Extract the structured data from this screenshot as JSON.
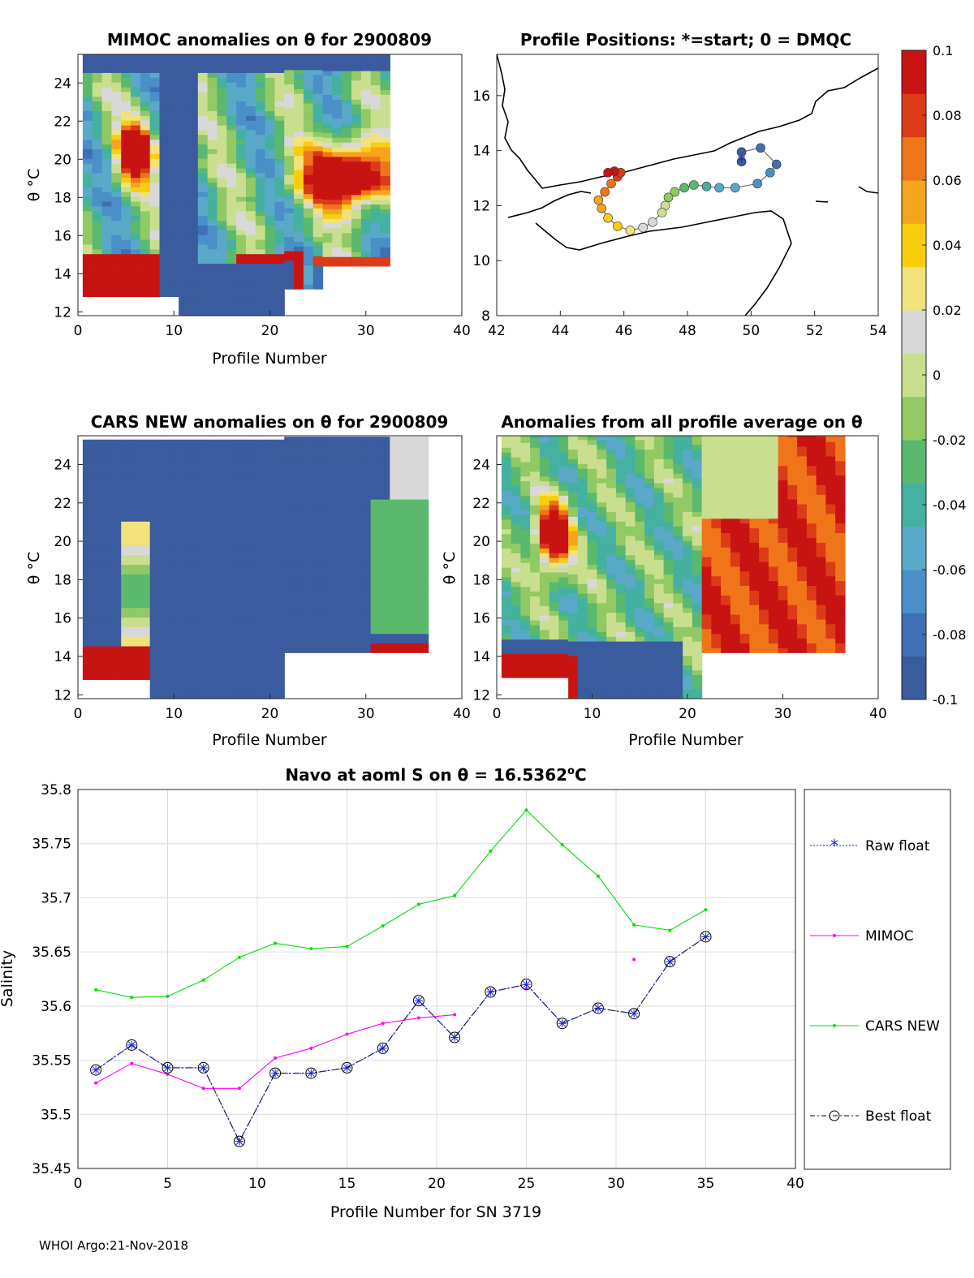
{
  "footer": "WHOI Argo:21-Nov-2018",
  "colors": {
    "cmap": [
      "#3b5b9f",
      "#3f6fb4",
      "#4a8fc8",
      "#5aa9c9",
      "#45b1a0",
      "#5bb96e",
      "#91c964",
      "#c9df8f",
      "#d8d8d8",
      "#f1e27a",
      "#f7cf0e",
      "#f7a41d",
      "#f0751a",
      "#dc3b17",
      "#c81313"
    ],
    "green": "#00e000",
    "magenta": "#ff00ff",
    "blue": "#1b24d4",
    "dash": "#000000"
  },
  "panels": {
    "mimoc": {
      "title": "MIMOC anomalies on θ  for 2900809",
      "xlabel": "Profile Number",
      "ylabel": "θ °C",
      "xticks": [
        "0",
        "10",
        "20",
        "30",
        "40"
      ],
      "yticks": [
        "12",
        "14",
        "16",
        "18",
        "20",
        "22",
        "24"
      ]
    },
    "positions": {
      "title": "Profile Positions: *=start; 0 = DMQC",
      "xticks": [
        "42",
        "44",
        "46",
        "48",
        "50",
        "52",
        "54"
      ],
      "yticks": [
        "8",
        "10",
        "12",
        "14",
        "16"
      ]
    },
    "cars": {
      "title": "CARS NEW anomalies on θ for 2900809",
      "xlabel": "Profile Number",
      "ylabel": "θ °C",
      "xticks": [
        "0",
        "10",
        "20",
        "30",
        "40"
      ],
      "yticks": [
        "12",
        "14",
        "16",
        "18",
        "20",
        "22",
        "24"
      ]
    },
    "allavg": {
      "title": "Anomalies from all profile average on θ",
      "xlabel": "Profile Number",
      "ylabel": "θ °C",
      "xticks": [
        "0",
        "10",
        "20",
        "30",
        "40"
      ],
      "yticks": [
        "12",
        "14",
        "16",
        "18",
        "20",
        "22",
        "24"
      ]
    },
    "colorbar": {
      "ticks": [
        "0.1",
        "0.08",
        "0.06",
        "0.04",
        "0.02",
        "0",
        "-0.02",
        "-0.04",
        "-0.06",
        "-0.08",
        "-0.1"
      ]
    }
  },
  "chart_data": [
    {
      "type": "heatmap",
      "title": "MIMOC anomalies on θ  for 2900809",
      "xlabel": "Profile Number",
      "ylabel": "θ °C",
      "xlim": [
        0,
        40
      ],
      "ylim": [
        11.8,
        25.5
      ],
      "clim": [
        -0.1,
        0.1
      ],
      "notes": "profiles 1-32; warm anomalies near profiles 5-7 (19-21°C), 24-32 (18-20°C), and below 15°C"
    },
    {
      "type": "scatter",
      "title": "Profile Positions: *=start; 0 = DMQC",
      "xlim": [
        42,
        54
      ],
      "ylim": [
        8,
        17.5
      ],
      "lon": [
        49.7,
        49.7,
        50.3,
        50.8,
        50.6,
        50.2,
        49.5,
        49.0,
        48.6,
        48.2,
        47.9,
        47.6,
        47.4,
        47.3,
        47.2,
        46.9,
        46.6,
        46.2,
        45.8,
        45.5,
        45.3,
        45.2,
        45.4,
        45.6,
        45.8,
        45.9,
        45.7,
        45.5
      ],
      "lat": [
        13.6,
        13.95,
        14.1,
        13.5,
        13.2,
        12.8,
        12.65,
        12.65,
        12.7,
        12.75,
        12.65,
        12.5,
        12.3,
        12.0,
        11.75,
        11.4,
        11.2,
        11.1,
        11.25,
        11.55,
        11.9,
        12.2,
        12.5,
        12.8,
        13.05,
        13.2,
        13.25,
        13.2
      ],
      "start": [
        49.7,
        13.6
      ]
    },
    {
      "type": "heatmap",
      "title": "CARS NEW anomalies on θ for 2900809",
      "xlabel": "Profile Number",
      "ylabel": "θ °C",
      "xlim": [
        0,
        40
      ],
      "ylim": [
        11.8,
        25.5
      ],
      "clim": [
        -0.1,
        0.1
      ],
      "notes": "mostly strong negative anomaly; warm patches below 15°C and near profiles 31-35"
    },
    {
      "type": "heatmap",
      "title": "Anomalies from all profile average on θ",
      "xlabel": "Profile Number",
      "ylabel": "θ °C",
      "xlim": [
        0,
        40
      ],
      "ylim": [
        11.8,
        25.5
      ],
      "clim": [
        -0.1,
        0.1
      ],
      "notes": "warm anomalies for profiles 22-36 and near profile 6 at 19-21°C"
    },
    {
      "type": "line",
      "title": "Navo at aoml S on θ = 16.5362°C",
      "title_main": "Navo at aoml S on θ = 16.5362",
      "title_sup": "o",
      "title_unit": "C",
      "xlabel": "Profile Number for SN 3719",
      "ylabel": "Salinity",
      "xlim": [
        0,
        40
      ],
      "ylim": [
        35.45,
        35.8
      ],
      "xticks": [
        "0",
        "5",
        "10",
        "15",
        "20",
        "25",
        "30",
        "35",
        "40"
      ],
      "yticks": [
        "35.45",
        "35.5",
        "35.55",
        "35.6",
        "35.65",
        "35.7",
        "35.75",
        "35.8"
      ],
      "legend_position": "outside-right",
      "series": [
        {
          "name": "Raw float",
          "x": [
            1,
            3,
            5,
            7,
            9,
            11,
            13,
            15,
            17,
            19,
            21,
            23,
            25,
            27,
            29,
            31,
            33,
            35
          ],
          "values": [
            35.541,
            35.564,
            35.543,
            35.543,
            35.475,
            35.538,
            35.538,
            35.543,
            35.561,
            35.605,
            35.571,
            35.613,
            35.62,
            35.584,
            35.598,
            35.593,
            35.641,
            35.664
          ]
        },
        {
          "name": "MIMOC",
          "x": [
            1,
            3,
            5,
            7,
            9,
            11,
            13,
            15,
            17,
            19,
            21,
            25,
            31
          ],
          "values": [
            35.529,
            35.547,
            35.537,
            35.524,
            35.524,
            35.552,
            35.561,
            35.574,
            35.584,
            35.589,
            35.592,
            35.616,
            35.643
          ],
          "segments": [
            [
              0,
              10
            ]
          ]
        },
        {
          "name": "CARS NEW",
          "x": [
            1,
            3,
            5,
            7,
            9,
            11,
            13,
            15,
            17,
            19,
            21,
            23,
            25,
            27,
            29,
            31,
            33,
            35
          ],
          "values": [
            35.615,
            35.608,
            35.609,
            35.624,
            35.645,
            35.658,
            35.653,
            35.655,
            35.674,
            35.694,
            35.702,
            35.743,
            35.781,
            35.749,
            35.72,
            35.675,
            35.67,
            35.689
          ]
        },
        {
          "name": "Best float",
          "x": [
            1,
            3,
            5,
            7,
            9,
            11,
            13,
            15,
            17,
            19,
            21,
            23,
            25,
            27,
            29,
            31,
            33,
            35
          ],
          "values": [
            35.541,
            35.564,
            35.543,
            35.543,
            35.475,
            35.538,
            35.538,
            35.543,
            35.561,
            35.605,
            35.571,
            35.613,
            35.62,
            35.584,
            35.598,
            35.593,
            35.641,
            35.664
          ]
        }
      ]
    }
  ]
}
